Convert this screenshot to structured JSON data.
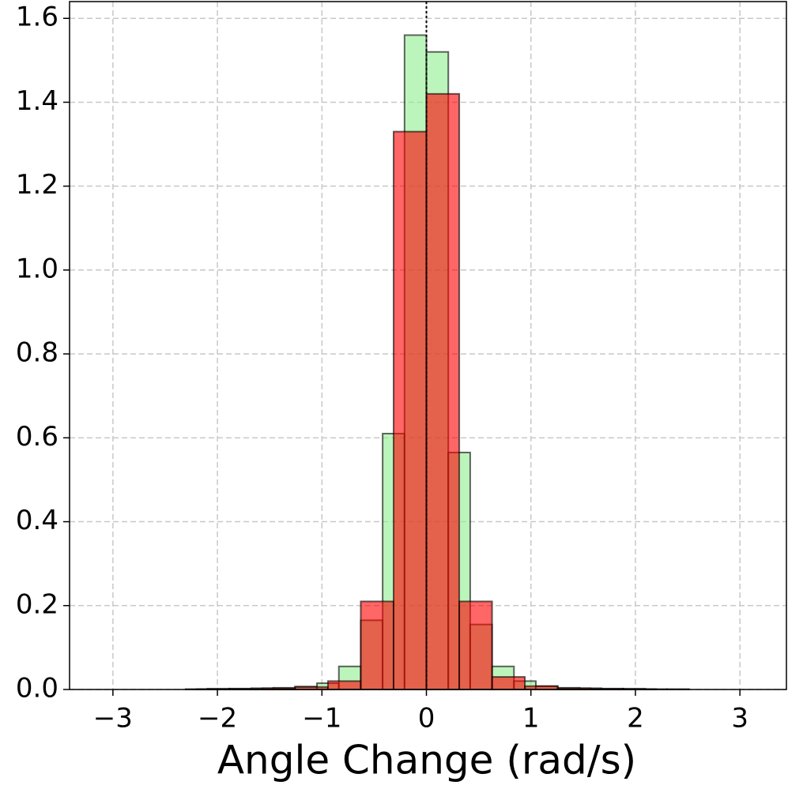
{
  "chart_data": {
    "type": "histogram",
    "xlabel": "Angle Change (rad/s)",
    "series": [
      {
        "color": "#90ee90",
        "bins": [
          -3.1416,
          -2.9322,
          -2.7227,
          -2.5133,
          -2.3038,
          -2.0944,
          -1.885,
          -1.6755,
          -1.4661,
          -1.2566,
          -1.0472,
          -0.8378,
          -0.6283,
          -0.4189,
          -0.2094,
          0,
          0.2094,
          0.4189,
          0.6283,
          0.8378,
          1.0472,
          1.2566,
          1.4661,
          1.6755,
          1.885,
          2.0944,
          2.3038,
          2.5133,
          2.7227,
          2.9322,
          3.1416
        ],
        "values": [
          0,
          0,
          0,
          0,
          0.001,
          0.002,
          0.002,
          0.003,
          0.004,
          0.007,
          0.015,
          0.055,
          0.165,
          0.61,
          1.56,
          1.52,
          0.565,
          0.155,
          0.055,
          0.02,
          0.008,
          0.004,
          0.003,
          0.002,
          0.002,
          0.001,
          0.001,
          0,
          0,
          0
        ]
      },
      {
        "color": "#ff0000",
        "bins": [
          -3.1416,
          -2.8274,
          -2.5133,
          -2.1991,
          -1.885,
          -1.5708,
          -1.2566,
          -0.9425,
          -0.6283,
          -0.3142,
          0,
          0.3142,
          0.6283,
          0.9425,
          1.2566,
          1.5708,
          1.885,
          2.1991,
          2.5133,
          2.8274,
          3.1416
        ],
        "values": [
          0,
          0,
          0,
          0.001,
          0.002,
          0.003,
          0.006,
          0.02,
          0.21,
          1.33,
          1.42,
          0.21,
          0.03,
          0.008,
          0.003,
          0.002,
          0.001,
          0,
          0,
          0
        ]
      }
    ],
    "xlim": [
      -3.415,
      3.445
    ],
    "ylim": [
      0,
      1.64
    ],
    "xticks": [
      {
        "value": -3,
        "label": "−3"
      },
      {
        "value": -2,
        "label": "−2"
      },
      {
        "value": -1,
        "label": "−1"
      },
      0,
      1,
      2,
      3
    ],
    "yticks": [
      {
        "value": 0,
        "label": "0.0"
      },
      {
        "value": 0.2,
        "label": "0.2"
      },
      {
        "value": 0.4,
        "label": "0.4"
      },
      {
        "value": 0.6,
        "label": "0.6"
      },
      {
        "value": 0.8,
        "label": "0.8"
      },
      {
        "value": 1,
        "label": "1.0"
      },
      {
        "value": 1.2,
        "label": "1.2"
      },
      {
        "value": 1.4,
        "label": "1.4"
      },
      {
        "value": 1.6,
        "label": "1.6"
      }
    ],
    "grid": true,
    "vline": 0
  }
}
